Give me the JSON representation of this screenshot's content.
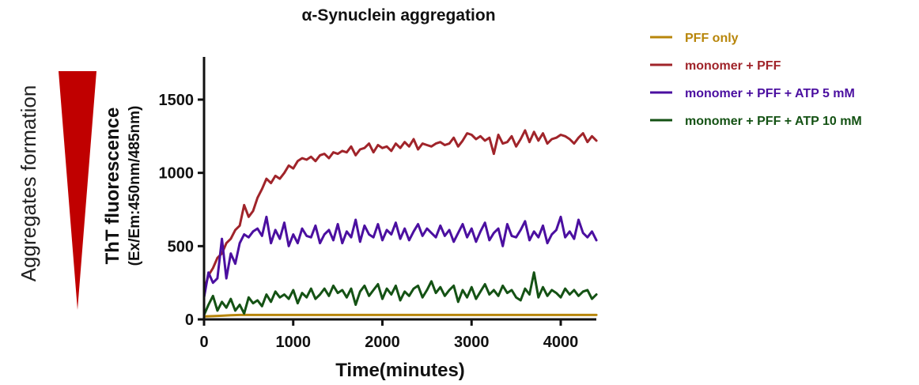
{
  "chart_data": {
    "type": "line",
    "title": "α-Synuclein aggregation",
    "xlabel": "Time(minutes)",
    "ylabel": "ThT fluorescence",
    "ylabel_sub": "(Ex/Em:450nm/485nm)",
    "side_label": "Aggregates formation",
    "xlim": [
      0,
      4400
    ],
    "ylim": [
      0,
      1800
    ],
    "xticks": [
      0,
      1000,
      2000,
      3000,
      4000
    ],
    "yticks": [
      0,
      500,
      1000,
      1500
    ],
    "grid": false,
    "legend_position": "top-right",
    "wedge_color": "#c00000",
    "series": [
      {
        "name": "PFF only",
        "color": "#b8860b",
        "x": [
          0,
          100,
          200,
          300,
          400,
          500,
          1000,
          1500,
          2000,
          2500,
          3000,
          3500,
          4000,
          4400
        ],
        "y": [
          20,
          22,
          25,
          28,
          30,
          30,
          30,
          30,
          30,
          30,
          30,
          30,
          30,
          30
        ]
      },
      {
        "name": "monomer + PFF",
        "color": "#a0242a",
        "x": [
          0,
          50,
          100,
          150,
          200,
          250,
          300,
          350,
          400,
          450,
          500,
          550,
          600,
          650,
          700,
          750,
          800,
          850,
          900,
          950,
          1000,
          1050,
          1100,
          1150,
          1200,
          1250,
          1300,
          1350,
          1400,
          1450,
          1500,
          1550,
          1600,
          1650,
          1700,
          1750,
          1800,
          1850,
          1900,
          1950,
          2000,
          2050,
          2100,
          2150,
          2200,
          2250,
          2300,
          2350,
          2400,
          2450,
          2500,
          2550,
          2600,
          2650,
          2700,
          2750,
          2800,
          2850,
          2900,
          2950,
          3000,
          3050,
          3100,
          3150,
          3200,
          3250,
          3300,
          3350,
          3400,
          3450,
          3500,
          3550,
          3600,
          3650,
          3700,
          3750,
          3800,
          3850,
          3900,
          3950,
          4000,
          4050,
          4100,
          4150,
          4200,
          4250,
          4300,
          4350,
          4400
        ],
        "y": [
          200,
          300,
          350,
          420,
          450,
          520,
          550,
          610,
          640,
          780,
          700,
          740,
          830,
          890,
          960,
          930,
          980,
          960,
          1000,
          1050,
          1030,
          1080,
          1100,
          1090,
          1110,
          1080,
          1120,
          1130,
          1100,
          1140,
          1130,
          1150,
          1140,
          1180,
          1120,
          1160,
          1170,
          1200,
          1140,
          1190,
          1170,
          1180,
          1150,
          1200,
          1170,
          1210,
          1180,
          1230,
          1160,
          1200,
          1190,
          1180,
          1200,
          1210,
          1190,
          1200,
          1240,
          1180,
          1220,
          1270,
          1260,
          1230,
          1250,
          1220,
          1240,
          1130,
          1260,
          1200,
          1210,
          1250,
          1180,
          1230,
          1290,
          1210,
          1280,
          1220,
          1270,
          1200,
          1230,
          1240,
          1260,
          1250,
          1230,
          1200,
          1240,
          1270,
          1210,
          1250,
          1220
        ]
      },
      {
        "name": "monomer + PFF + ATP 5 mM",
        "color": "#4b0fa0",
        "x": [
          0,
          50,
          100,
          150,
          200,
          250,
          300,
          350,
          400,
          450,
          500,
          550,
          600,
          650,
          700,
          750,
          800,
          850,
          900,
          950,
          1000,
          1050,
          1100,
          1150,
          1200,
          1250,
          1300,
          1350,
          1400,
          1450,
          1500,
          1550,
          1600,
          1650,
          1700,
          1750,
          1800,
          1850,
          1900,
          1950,
          2000,
          2050,
          2100,
          2150,
          2200,
          2250,
          2300,
          2350,
          2400,
          2450,
          2500,
          2550,
          2600,
          2650,
          2700,
          2750,
          2800,
          2850,
          2900,
          2950,
          3000,
          3050,
          3100,
          3150,
          3200,
          3250,
          3300,
          3350,
          3400,
          3450,
          3500,
          3550,
          3600,
          3650,
          3700,
          3750,
          3800,
          3850,
          3900,
          3950,
          4000,
          4050,
          4100,
          4150,
          4200,
          4250,
          4300,
          4350,
          4400
        ],
        "y": [
          150,
          320,
          250,
          280,
          550,
          280,
          450,
          380,
          520,
          580,
          560,
          600,
          620,
          570,
          700,
          520,
          610,
          550,
          660,
          500,
          580,
          520,
          620,
          570,
          560,
          640,
          520,
          580,
          610,
          540,
          650,
          520,
          600,
          560,
          680,
          530,
          640,
          580,
          560,
          650,
          540,
          610,
          580,
          660,
          550,
          620,
          540,
          600,
          650,
          570,
          620,
          590,
          560,
          640,
          570,
          610,
          530,
          590,
          650,
          560,
          620,
          530,
          600,
          660,
          540,
          590,
          620,
          500,
          650,
          570,
          560,
          610,
          670,
          540,
          600,
          560,
          640,
          520,
          580,
          610,
          700,
          560,
          600,
          550,
          680,
          590,
          560,
          600,
          540
        ]
      },
      {
        "name": "monomer + PFF + ATP 10 mM",
        "color": "#145214",
        "x": [
          0,
          50,
          100,
          150,
          200,
          250,
          300,
          350,
          400,
          450,
          500,
          550,
          600,
          650,
          700,
          750,
          800,
          850,
          900,
          950,
          1000,
          1050,
          1100,
          1150,
          1200,
          1250,
          1300,
          1350,
          1400,
          1450,
          1500,
          1550,
          1600,
          1650,
          1700,
          1750,
          1800,
          1850,
          1900,
          1950,
          2000,
          2050,
          2100,
          2150,
          2200,
          2250,
          2300,
          2350,
          2400,
          2450,
          2500,
          2550,
          2600,
          2650,
          2700,
          2750,
          2800,
          2850,
          2900,
          2950,
          3000,
          3050,
          3100,
          3150,
          3200,
          3250,
          3300,
          3350,
          3400,
          3450,
          3500,
          3550,
          3600,
          3650,
          3700,
          3750,
          3800,
          3850,
          3900,
          3950,
          4000,
          4050,
          4100,
          4150,
          4200,
          4250,
          4300,
          4350,
          4400
        ],
        "y": [
          30,
          100,
          160,
          60,
          120,
          80,
          140,
          60,
          100,
          40,
          150,
          110,
          130,
          90,
          170,
          120,
          190,
          150,
          170,
          140,
          200,
          110,
          180,
          150,
          210,
          140,
          170,
          210,
          160,
          230,
          180,
          200,
          150,
          210,
          100,
          190,
          230,
          160,
          200,
          240,
          140,
          210,
          170,
          230,
          130,
          190,
          160,
          210,
          230,
          150,
          200,
          260,
          180,
          220,
          160,
          200,
          230,
          120,
          200,
          150,
          220,
          140,
          190,
          240,
          170,
          200,
          160,
          230,
          180,
          200,
          150,
          130,
          210,
          170,
          320,
          150,
          220,
          160,
          200,
          180,
          150,
          210,
          170,
          200,
          160,
          190,
          200,
          140,
          170
        ]
      }
    ]
  }
}
